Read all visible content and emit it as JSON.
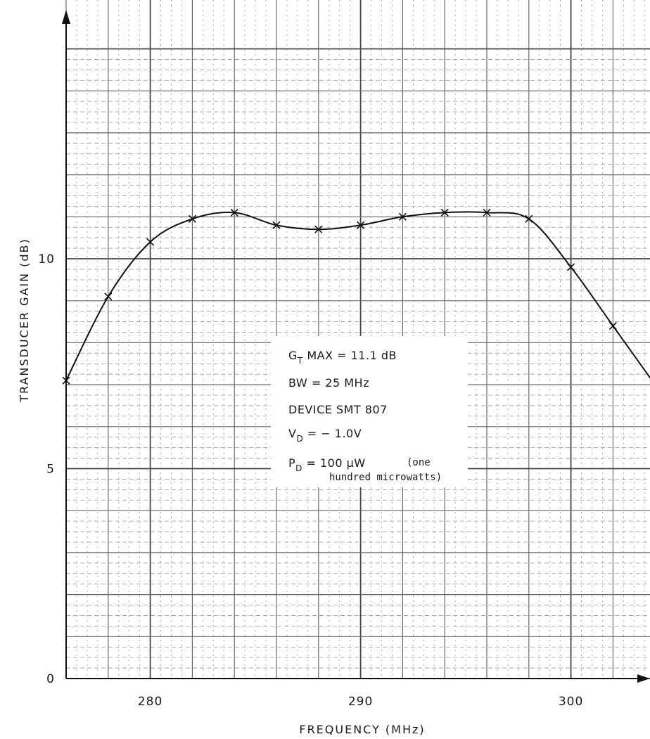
{
  "chart_data": {
    "type": "line",
    "title": "",
    "xlabel": "FREQUENCY (MHz)",
    "ylabel": "TRANSDUCER GAIN (dB)",
    "xlim": [
      276,
      304
    ],
    "ylim": [
      0,
      15
    ],
    "x_ticks": [
      280,
      290,
      300
    ],
    "y_ticks": [
      0,
      5,
      10
    ],
    "x_tick_labels": [
      "280",
      "290",
      "300"
    ],
    "y_tick_labels": [
      "0",
      "5",
      "10"
    ],
    "grid": true,
    "legend": "none",
    "series": [
      {
        "values_x": [
          276,
          278,
          280,
          282,
          284,
          286,
          288,
          290,
          292,
          294,
          296,
          298,
          300,
          302,
          304
        ],
        "values_y": [
          7.1,
          9.1,
          10.4,
          10.95,
          11.1,
          10.8,
          10.7,
          10.8,
          11.0,
          11.1,
          11.1,
          10.95,
          9.8,
          8.4,
          7.0
        ]
      }
    ],
    "annotations": {
      "line1_main": "G",
      "line1_sub": "T",
      "line1_rest": " MAX = 11.1 dB",
      "line2": "BW = 25 MHz",
      "line3": "DEVICE  SMT 807",
      "line4_main": "V",
      "line4_sub": "D",
      "line4_rest": " = − 1.0V",
      "line5_main": "P",
      "line5_sub": "D",
      "line5_rest": " = 100 μW",
      "line5_note_a": "(one",
      "line5_note_b": "hundred microwatts)"
    }
  }
}
